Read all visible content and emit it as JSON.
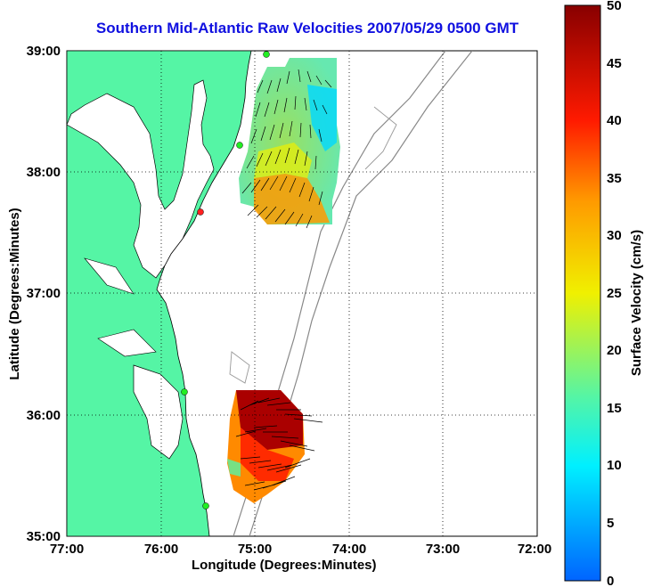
{
  "title": "Southern Mid-Atlantic Raw Velocities 2007/05/29 0500 GMT",
  "xlabel": "Longitude (Degrees:Minutes)",
  "ylabel": "Latitude (Degrees:Minutes)",
  "colorbar": {
    "label": "Surface Velocity (cm/s)",
    "ticks": [
      "0",
      "5",
      "10",
      "15",
      "20",
      "25",
      "30",
      "35",
      "40",
      "45",
      "50"
    ],
    "min": 0,
    "max": 50
  },
  "axes": {
    "x_ticks": [
      "77:00",
      "76:00",
      "75:00",
      "74:00",
      "73:00",
      "72:00"
    ],
    "y_ticks": [
      "39:00",
      "38:00",
      "37:00",
      "36:00",
      "35:00"
    ],
    "lon_range": [
      -77,
      -72
    ],
    "lat_range": [
      35,
      39
    ],
    "grid": "dotted"
  },
  "colors": {
    "land": "#55f5a5",
    "title": "#1010e0",
    "stations": "#22ee22"
  }
}
